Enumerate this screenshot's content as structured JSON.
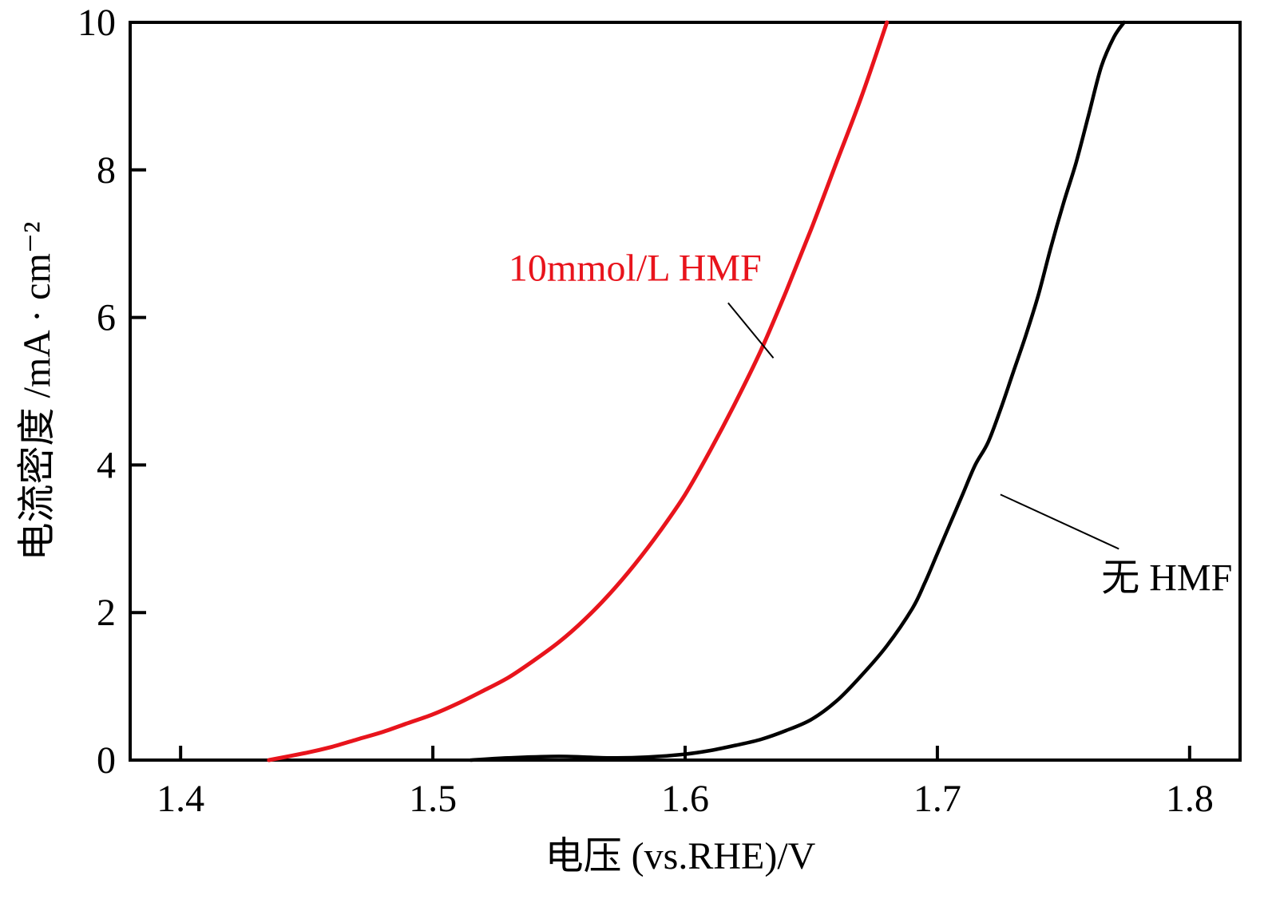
{
  "chart_data": {
    "type": "line",
    "title": "",
    "xlabel": "电压 (vs.RHE)/V",
    "ylabel": "电流密度 /mA · cm⁻²",
    "xlim": [
      1.38,
      1.82
    ],
    "ylim": [
      0,
      10
    ],
    "x_ticks": [
      1.4,
      1.5,
      1.6,
      1.7,
      1.8
    ],
    "x_tick_labels": [
      "1.4",
      "1.5",
      "1.6",
      "1.7",
      "1.8"
    ],
    "y_ticks": [
      0,
      2,
      4,
      6,
      8,
      10
    ],
    "y_tick_labels": [
      "0",
      "2",
      "4",
      "6",
      "8",
      "10"
    ],
    "grid": false,
    "series": [
      {
        "name": "10mmol/L HMF",
        "color": "#e8141c",
        "x": [
          1.435,
          1.45,
          1.46,
          1.47,
          1.48,
          1.49,
          1.5,
          1.51,
          1.52,
          1.53,
          1.54,
          1.55,
          1.56,
          1.57,
          1.58,
          1.59,
          1.6,
          1.61,
          1.62,
          1.63,
          1.64,
          1.65,
          1.66,
          1.67,
          1.68
        ],
        "y": [
          0.0,
          0.1,
          0.18,
          0.28,
          0.38,
          0.5,
          0.62,
          0.77,
          0.94,
          1.12,
          1.35,
          1.6,
          1.9,
          2.25,
          2.65,
          3.1,
          3.6,
          4.2,
          4.85,
          5.55,
          6.35,
          7.2,
          8.1,
          9.0,
          10.0
        ]
      },
      {
        "name": "无 HMF",
        "color": "#000000",
        "x": [
          1.515,
          1.53,
          1.55,
          1.57,
          1.585,
          1.6,
          1.61,
          1.62,
          1.63,
          1.64,
          1.65,
          1.66,
          1.67,
          1.68,
          1.69,
          1.695,
          1.7,
          1.705,
          1.71,
          1.715,
          1.72,
          1.725,
          1.73,
          1.735,
          1.74,
          1.745,
          1.75,
          1.755,
          1.76,
          1.765,
          1.77,
          1.774
        ],
        "y": [
          0.0,
          0.03,
          0.05,
          0.03,
          0.04,
          0.08,
          0.13,
          0.2,
          0.28,
          0.4,
          0.55,
          0.8,
          1.15,
          1.55,
          2.05,
          2.4,
          2.8,
          3.2,
          3.6,
          4.0,
          4.3,
          4.75,
          5.25,
          5.75,
          6.3,
          6.95,
          7.55,
          8.1,
          8.75,
          9.4,
          9.8,
          10.0
        ]
      }
    ],
    "annotations": [
      {
        "text": "10mmol/L HMF",
        "series": 0,
        "color": "#e8141c",
        "x": 1.53,
        "y": 6.5,
        "arrow_to": [
          1.635,
          5.45
        ]
      },
      {
        "text": "无 HMF",
        "series": 1,
        "color": "#000000",
        "x": 1.765,
        "y": 2.3,
        "arrow_to": [
          1.725,
          3.6
        ]
      }
    ]
  }
}
